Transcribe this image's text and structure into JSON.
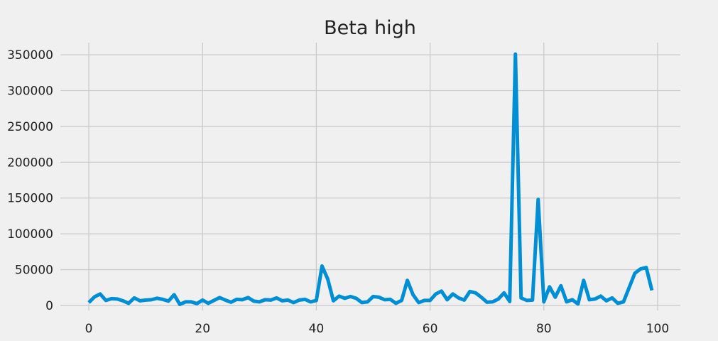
{
  "chart_data": {
    "type": "line",
    "title": "Beta high",
    "xlabel": "",
    "ylabel": "",
    "xlim": [
      -5,
      104
    ],
    "ylim": [
      -7000,
      367000
    ],
    "x_ticks": [
      0,
      20,
      40,
      60,
      80,
      100
    ],
    "x_tick_labels": [
      "0",
      "20",
      "40",
      "60",
      "80",
      "100"
    ],
    "y_ticks": [
      0,
      50000,
      100000,
      150000,
      200000,
      250000,
      300000,
      350000
    ],
    "y_tick_labels": [
      "0",
      "50000",
      "100000",
      "150000",
      "200000",
      "250000",
      "300000",
      "350000"
    ],
    "grid": true,
    "background": "#f0f0f0",
    "line_color": "#008fd5",
    "series": [
      {
        "values": [
          4000,
          12000,
          16000,
          7000,
          9500,
          9000,
          6500,
          3000,
          10500,
          6500,
          7500,
          8000,
          10000,
          8500,
          6000,
          15000,
          1500,
          5000,
          5000,
          2500,
          7500,
          3000,
          7000,
          11000,
          7500,
          4500,
          8500,
          8000,
          11000,
          6000,
          5000,
          8000,
          7500,
          10500,
          6500,
          7500,
          4000,
          7500,
          8500,
          5000,
          7000,
          55000,
          37000,
          6500,
          13000,
          10000,
          12500,
          10000,
          4000,
          5000,
          12500,
          11500,
          8000,
          8500,
          3000,
          7000,
          35000,
          15000,
          4000,
          7000,
          7000,
          16000,
          20000,
          8000,
          16000,
          10500,
          7500,
          19500,
          17500,
          11500,
          4500,
          5000,
          9000,
          17500,
          5500,
          351000,
          10500,
          7000,
          7500,
          148000,
          5000,
          26000,
          11500,
          27500,
          5000,
          8000,
          2000,
          35000,
          8000,
          9000,
          13000,
          6500,
          10500,
          3000,
          5000,
          25000,
          45000,
          51000,
          53000,
          21000
        ]
      }
    ]
  }
}
